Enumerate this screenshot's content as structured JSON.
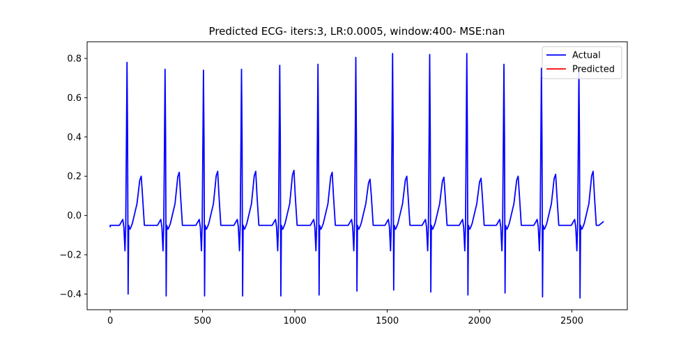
{
  "chart_data": {
    "type": "line",
    "title": "Predicted ECG- iters:3, LR:0.0005, window:400- MSE:nan",
    "xlabel": "",
    "ylabel": "",
    "xlim": [
      -125,
      2800
    ],
    "ylim": [
      -0.48,
      0.885
    ],
    "x_ticks": [
      0,
      500,
      1000,
      1500,
      2000,
      2500
    ],
    "x_tick_labels": [
      "0",
      "500",
      "1000",
      "1500",
      "2000",
      "2500"
    ],
    "y_ticks": [
      -0.4,
      -0.2,
      0.0,
      0.2,
      0.4,
      0.6,
      0.8
    ],
    "y_tick_labels": [
      "−0.4",
      "−0.2",
      "0.0",
      "0.2",
      "0.4",
      "0.6",
      "0.8"
    ],
    "legend": {
      "position": "top-right",
      "entries": [
        "Actual",
        "Predicted"
      ]
    },
    "beat_template": {
      "x": [
        0,
        25,
        50,
        68,
        74,
        80,
        84,
        88,
        91,
        94,
        97,
        100,
        103,
        107,
        112,
        120,
        145,
        160,
        168,
        175,
        185,
        200
      ],
      "y": [
        -0.05,
        -0.05,
        -0.05,
        -0.02,
        -0.06,
        -0.18,
        -0.05,
        0.4,
        0.77,
        0.4,
        -0.4,
        -0.05,
        -0.06,
        -0.07,
        -0.06,
        -0.04,
        0.06,
        0.18,
        0.2,
        0.1,
        -0.05,
        -0.05
      ]
    },
    "series": [
      {
        "name": "Actual",
        "color": "#0000ff",
        "y_start": -0.06,
        "beats": [
          {
            "r_x": 97,
            "r_peak": 0.78,
            "s_min": -0.4,
            "t_peak": 0.2
          },
          {
            "r_x": 303,
            "r_peak": 0.745,
            "s_min": -0.41,
            "t_peak": 0.22
          },
          {
            "r_x": 511,
            "r_peak": 0.74,
            "s_min": -0.41,
            "t_peak": 0.225
          },
          {
            "r_x": 717,
            "r_peak": 0.745,
            "s_min": -0.41,
            "t_peak": 0.225
          },
          {
            "r_x": 924,
            "r_peak": 0.765,
            "s_min": -0.41,
            "t_peak": 0.23
          },
          {
            "r_x": 1131,
            "r_peak": 0.77,
            "s_min": -0.405,
            "t_peak": 0.22
          },
          {
            "r_x": 1336,
            "r_peak": 0.805,
            "s_min": -0.385,
            "t_peak": 0.185
          },
          {
            "r_x": 1535,
            "r_peak": 0.825,
            "s_min": -0.38,
            "t_peak": 0.2
          },
          {
            "r_x": 1736,
            "r_peak": 0.82,
            "s_min": -0.39,
            "t_peak": 0.195
          },
          {
            "r_x": 1937,
            "r_peak": 0.825,
            "s_min": -0.405,
            "t_peak": 0.19
          },
          {
            "r_x": 2138,
            "r_peak": 0.77,
            "s_min": -0.395,
            "t_peak": 0.2
          },
          {
            "r_x": 2341,
            "r_peak": 0.75,
            "s_min": -0.415,
            "t_peak": 0.21
          },
          {
            "r_x": 2544,
            "r_peak": 0.75,
            "s_min": -0.42,
            "t_peak": 0.225
          }
        ],
        "x_end": 2672,
        "y_end": -0.03
      },
      {
        "name": "Predicted",
        "color": "#ff0000",
        "values": []
      }
    ]
  }
}
